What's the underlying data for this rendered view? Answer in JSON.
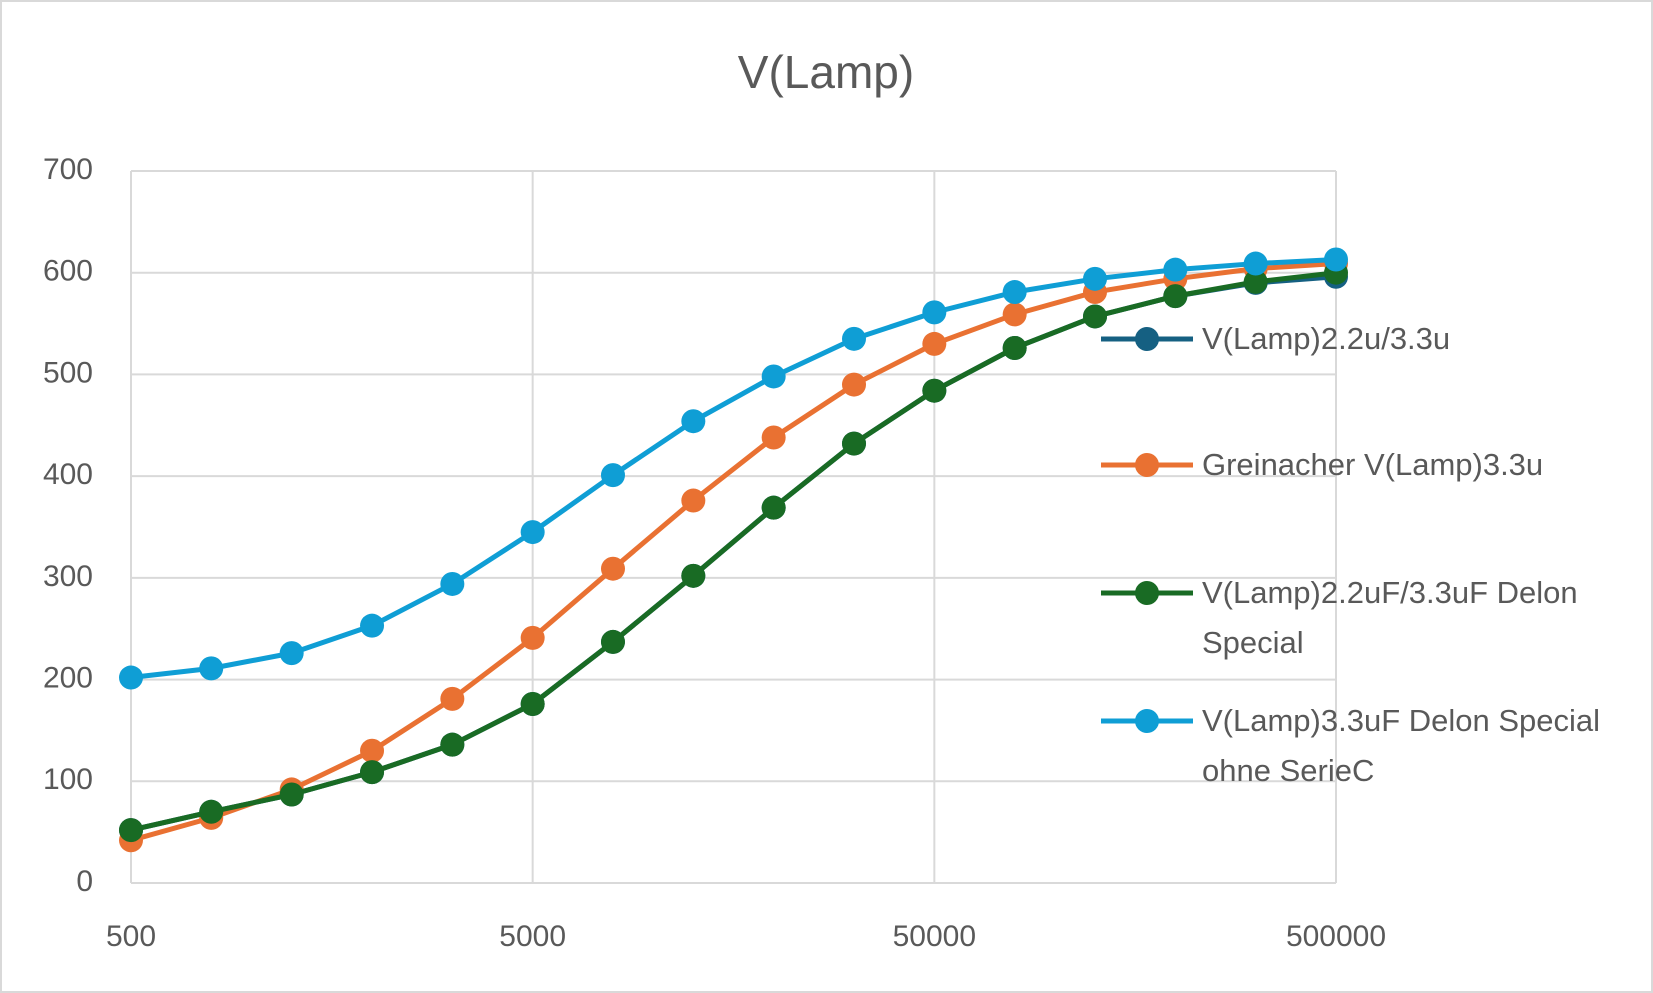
{
  "chart_data": {
    "type": "line",
    "title": "V(Lamp)",
    "x": [
      500,
      792,
      1256,
      1991,
      3155,
      5000,
      7924,
      12559,
      19905,
      31548,
      50000,
      79245,
      125594,
      199054,
      315479,
      500000
    ],
    "xscale": "log",
    "xlim": [
      500,
      500000
    ],
    "xticks": [
      500,
      5000,
      50000,
      500000
    ],
    "ylim": [
      0,
      700
    ],
    "yticks": [
      0,
      100,
      200,
      300,
      400,
      500,
      600,
      700
    ],
    "grid": true,
    "legend": "right",
    "series": [
      {
        "name": "V(Lamp)2.2u/3.3u",
        "color": "#156082",
        "values": [
          52,
          70,
          87,
          109,
          136,
          176,
          237,
          302,
          369,
          432,
          484,
          526,
          557,
          577,
          590,
          596
        ]
      },
      {
        "name": "Greinacher V(Lamp)3.3u",
        "color": "#e97132",
        "values": [
          42,
          64,
          92,
          130,
          181,
          241,
          309,
          376,
          438,
          490,
          530,
          559,
          581,
          594,
          604,
          609
        ]
      },
      {
        "name": "V(Lamp)2.2uF/3.3uF Delon Special",
        "color": "#196b24",
        "values": [
          52,
          70,
          87,
          109,
          136,
          176,
          237,
          302,
          369,
          432,
          484,
          526,
          557,
          577,
          591,
          600
        ]
      },
      {
        "name": "V(Lamp)3.3uF Delon Special ohne SerieC",
        "color": "#0f9ed5",
        "values": [
          202,
          211,
          226,
          253,
          294,
          345,
          401,
          454,
          498,
          535,
          561,
          581,
          594,
          603,
          609,
          613
        ]
      }
    ]
  }
}
